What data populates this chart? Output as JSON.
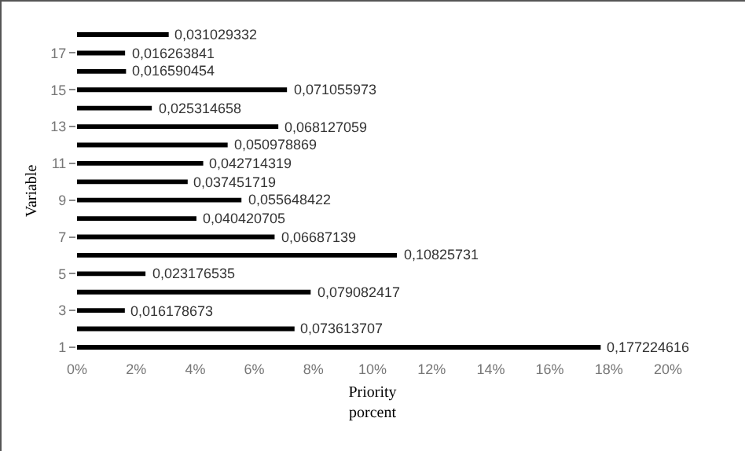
{
  "chart_data": {
    "type": "bar",
    "orientation": "horizontal",
    "ylabel": "Variable",
    "xlabel": "Priority\nporcent",
    "categories": [
      null,
      "17",
      null,
      "15",
      null,
      "13",
      null,
      "11",
      null,
      "9",
      null,
      "7",
      null,
      "5",
      null,
      "3",
      null,
      "1"
    ],
    "values": [
      0.031029332,
      0.016263841,
      0.016590454,
      0.071055973,
      0.025314658,
      0.068127059,
      0.050978869,
      0.042714319,
      0.037451719,
      0.055648422,
      0.040420705,
      0.06687139,
      0.10825731,
      0.023176535,
      0.079082417,
      0.016178673,
      0.073613707,
      0.177224616
    ],
    "value_labels": [
      "0,031029332",
      "0,016263841",
      "0,016590454",
      "0,071055973",
      "0,025314658",
      "0,068127059",
      "0,050978869",
      "0,042714319",
      "0,037451719",
      "0,055648422",
      "0,040420705",
      "0,06687139",
      "0,10825731",
      "0,023176535",
      "0,079082417",
      "0,016178673",
      "0,073613707",
      "0,177224616"
    ],
    "color": "#000000",
    "xlim": [
      0,
      0.2
    ],
    "xticks": [
      {
        "value": 0,
        "label": "0%"
      },
      {
        "value": 0.02,
        "label": "2%"
      },
      {
        "value": 0.04,
        "label": "4%"
      },
      {
        "value": 0.06,
        "label": "6%"
      },
      {
        "value": 0.08,
        "label": "8%"
      },
      {
        "value": 0.1,
        "label": "10%"
      },
      {
        "value": 0.12,
        "label": "12%"
      },
      {
        "value": 0.14,
        "label": "14%"
      },
      {
        "value": 0.16,
        "label": "16%"
      },
      {
        "value": 0.18,
        "label": "18%"
      },
      {
        "value": 0.2,
        "label": "20%"
      }
    ],
    "grid": false
  }
}
